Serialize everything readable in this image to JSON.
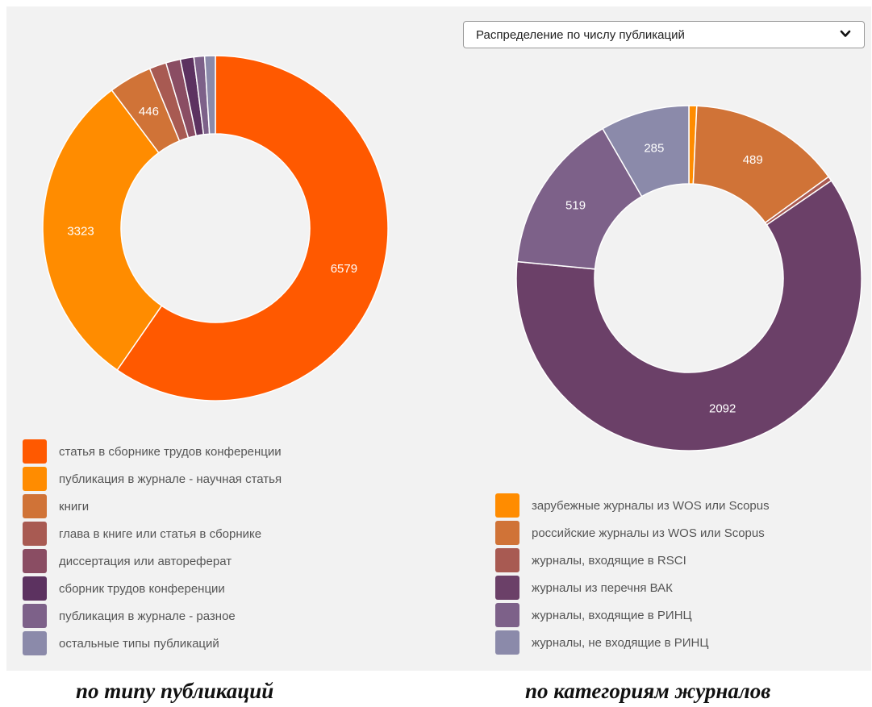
{
  "dropdown": {
    "selected": "Распределение по числу публикаций"
  },
  "captions": {
    "left": "по типу публикаций",
    "right": "по категориям журналов"
  },
  "chart_data": [
    {
      "type": "pie",
      "donut": true,
      "title": "",
      "series": [
        {
          "labels": [
            "статья в сборнике трудов конференции",
            "публикация в журнале - научная статья",
            "книги",
            "глава в книге или статья в сборнике",
            "диссертация или автореферат",
            "сборник трудов конференции",
            "публикация в журнале - разное",
            "остальные типы публикаций"
          ],
          "values": [
            6579,
            3323,
            446,
            175,
            150,
            140,
            110,
            110
          ],
          "data_labels": [
            "6579",
            "3323",
            "446",
            "",
            "",
            "",
            "",
            ""
          ]
        }
      ],
      "colors": [
        "#ff5900",
        "#ff8c00",
        "#d07337",
        "#a85a52",
        "#8a4d63",
        "#5c3260",
        "#7d6189",
        "#8b8aaa"
      ],
      "legend_position": "bottom"
    },
    {
      "type": "pie",
      "donut": true,
      "title": "",
      "series": [
        {
          "labels": [
            "зарубежные журналы из WOS или Scopus",
            "российские журналы из WOS или Scopus",
            "журналы, входящие в RSCI",
            "журналы из перечня ВАК",
            "журналы, входящие в РИНЦ",
            "журналы, не входящие в РИНЦ"
          ],
          "values": [
            25,
            489,
            15,
            2092,
            519,
            285
          ],
          "data_labels": [
            "",
            "489",
            "",
            "2092",
            "519",
            "285"
          ]
        }
      ],
      "colors": [
        "#ff8c00",
        "#d07337",
        "#a85a52",
        "#6b4068",
        "#7d6189",
        "#8b8aaa"
      ],
      "legend_position": "bottom"
    }
  ]
}
